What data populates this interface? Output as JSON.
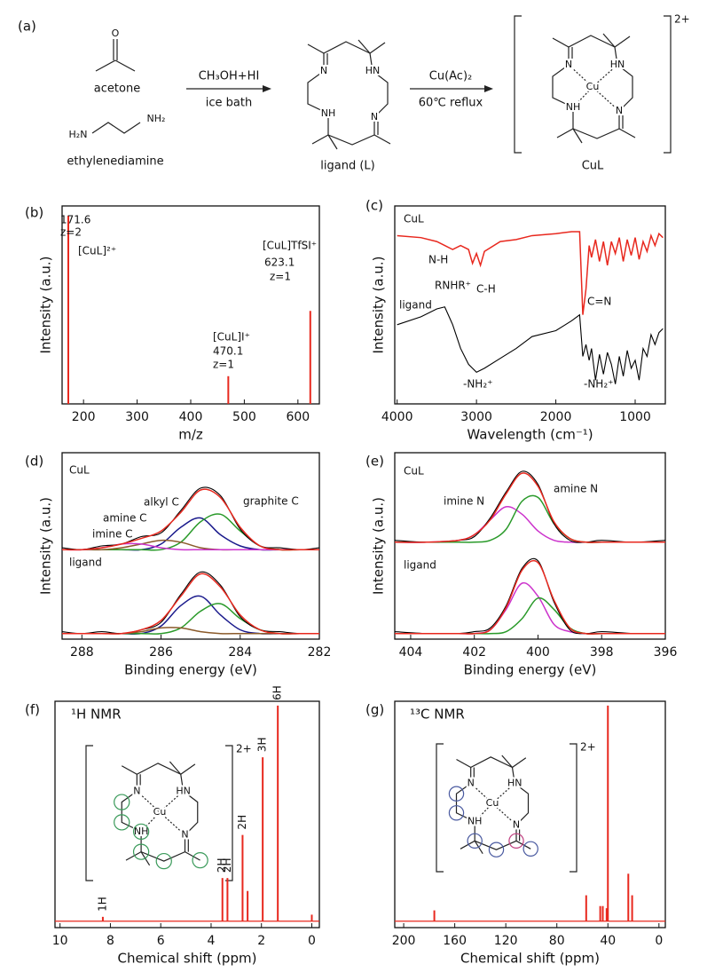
{
  "scheme": {
    "label": "(a)",
    "acetone_atoms": [
      "O"
    ],
    "acetone": "acetone",
    "ethylenediamine_atoms": [
      "H₂N",
      "NH₂"
    ],
    "ethylenediamine": "ethylenediamine",
    "step1": [
      "CH₃OH+HI",
      "ice bath"
    ],
    "ligand_atoms": [
      "N",
      "HN",
      "NH",
      "N"
    ],
    "ligand": "ligand (L)",
    "step2": [
      "Cu(Ac)₂",
      "60℃ reflux"
    ],
    "complex_atoms": [
      "N",
      "HN",
      "NH",
      "N",
      "Cu"
    ],
    "complex_charge": "2+",
    "complex": "CuL"
  },
  "chart_data": [
    {
      "type": "stick",
      "panel": "(b)",
      "xlabel": "m/z",
      "ylabel": "Intensity (a.u.)",
      "color": "#e8281e",
      "x": [
        171.6,
        470.1,
        623.1
      ],
      "values": [
        0.95,
        0.14,
        0.47
      ],
      "annotations": [
        "z=2",
        "[CuL]²⁺",
        "[CuL]I⁺",
        "z=1",
        "[CuL]TfSI⁺",
        "z=1"
      ],
      "xlim": [
        160,
        640
      ],
      "ylim": [
        0,
        1
      ],
      "xticks": [
        200,
        300,
        400,
        500,
        600
      ]
    },
    {
      "type": "line",
      "panel": "(c)",
      "xlabel": "Wavelength (cm⁻¹)",
      "ylabel": "Intensity (a.u.)",
      "x": [
        4000,
        3700,
        3500,
        3400,
        3300,
        3200,
        3100,
        3050,
        3000,
        2950,
        2900,
        2700,
        2500,
        2300,
        2000,
        1800,
        1700,
        1660,
        1620,
        1580,
        1550,
        1500,
        1450,
        1400,
        1350,
        1300,
        1250,
        1200,
        1150,
        1100,
        1050,
        1000,
        950,
        900,
        850,
        800,
        750,
        700,
        650
      ],
      "series": [
        {
          "name": "CuL",
          "color": "#e8281e",
          "values": [
            0.85,
            0.84,
            0.82,
            0.8,
            0.78,
            0.8,
            0.78,
            0.71,
            0.76,
            0.7,
            0.77,
            0.82,
            0.83,
            0.85,
            0.86,
            0.87,
            0.87,
            0.45,
            0.58,
            0.8,
            0.74,
            0.83,
            0.72,
            0.82,
            0.7,
            0.82,
            0.76,
            0.84,
            0.72,
            0.83,
            0.75,
            0.84,
            0.73,
            0.82,
            0.77,
            0.85,
            0.8,
            0.86,
            0.84
          ]
        },
        {
          "name": "ligand",
          "color": "#000000",
          "values": [
            0.4,
            0.44,
            0.48,
            0.49,
            0.4,
            0.28,
            0.2,
            0.18,
            0.16,
            0.17,
            0.18,
            0.23,
            0.28,
            0.34,
            0.37,
            0.42,
            0.45,
            0.24,
            0.3,
            0.22,
            0.28,
            0.12,
            0.25,
            0.15,
            0.26,
            0.2,
            0.1,
            0.24,
            0.14,
            0.27,
            0.18,
            0.22,
            0.12,
            0.28,
            0.24,
            0.35,
            0.3,
            0.36,
            0.38
          ]
        }
      ],
      "annotations": [
        "N-H",
        "RNHR⁺",
        "C-H",
        "C=N",
        "-NH₂⁺",
        "-NH₂⁺"
      ],
      "xlim": [
        4030,
        620
      ],
      "ylim": [
        0,
        1
      ],
      "xticks": [
        4000,
        3000,
        2000,
        1000
      ]
    },
    {
      "type": "line",
      "panel": "(d)",
      "xlabel": "Binding energy (eV)",
      "ylabel": "Intensity (a.u.)",
      "x": [
        288.5,
        288,
        287.5,
        287,
        286.5,
        286,
        285.5,
        285,
        284.5,
        284,
        283.5,
        283,
        282.5,
        282
      ],
      "series": [
        {
          "color": "#1a1a8c",
          "values": [
            0.48,
            0.48,
            0.48,
            0.48,
            0.48,
            0.51,
            0.6,
            0.65,
            0.56,
            0.5,
            0.48,
            0.48,
            0.48,
            0.48
          ]
        },
        {
          "color": "#2a9a2a",
          "values": [
            0.48,
            0.48,
            0.48,
            0.48,
            0.48,
            0.48,
            0.52,
            0.63,
            0.67,
            0.58,
            0.5,
            0.48,
            0.48,
            0.48
          ]
        },
        {
          "color": "#8a5a2a",
          "values": [
            0.48,
            0.48,
            0.48,
            0.49,
            0.51,
            0.53,
            0.52,
            0.49,
            0.48,
            0.48,
            0.48,
            0.48,
            0.48,
            0.48
          ]
        },
        {
          "color": "#cc33cc",
          "values": [
            0.48,
            0.48,
            0.49,
            0.51,
            0.51,
            0.49,
            0.48,
            0.48,
            0.48,
            0.48,
            0.48,
            0.48,
            0.48,
            0.48
          ]
        },
        {
          "color": "#000000",
          "values": [
            0.49,
            0.48,
            0.5,
            0.51,
            0.55,
            0.57,
            0.69,
            0.81,
            0.77,
            0.59,
            0.5,
            0.49,
            0.48,
            0.49
          ]
        },
        {
          "color": "#e8281e",
          "values": [
            0.48,
            0.48,
            0.49,
            0.51,
            0.54,
            0.58,
            0.68,
            0.8,
            0.76,
            0.6,
            0.5,
            0.48,
            0.48,
            0.48
          ]
        },
        {
          "color": "#1a1a8c",
          "values": [
            0.03,
            0.03,
            0.03,
            0.03,
            0.03,
            0.07,
            0.18,
            0.23,
            0.13,
            0.05,
            0.03,
            0.03,
            0.03,
            0.03
          ]
        },
        {
          "color": "#2a9a2a",
          "values": [
            0.03,
            0.03,
            0.03,
            0.03,
            0.03,
            0.03,
            0.06,
            0.15,
            0.19,
            0.11,
            0.05,
            0.03,
            0.03,
            0.03
          ]
        },
        {
          "color": "#8a5a2a",
          "values": [
            0.03,
            0.03,
            0.03,
            0.03,
            0.04,
            0.06,
            0.06,
            0.04,
            0.03,
            0.03,
            0.03,
            0.03,
            0.03,
            0.03
          ]
        },
        {
          "color": "#000000",
          "values": [
            0.04,
            0.03,
            0.04,
            0.03,
            0.05,
            0.09,
            0.24,
            0.36,
            0.29,
            0.12,
            0.05,
            0.04,
            0.03,
            0.03
          ]
        },
        {
          "color": "#e8281e",
          "values": [
            0.03,
            0.03,
            0.03,
            0.03,
            0.05,
            0.1,
            0.23,
            0.35,
            0.28,
            0.13,
            0.05,
            0.03,
            0.03,
            0.03
          ]
        }
      ],
      "annotations": [
        "CuL",
        "alkyl C",
        "amine C",
        "imine C",
        "graphite C",
        "ligand"
      ],
      "xlim": [
        288.5,
        282
      ],
      "ylim": [
        0,
        1
      ],
      "xticks": [
        288,
        286,
        284,
        282
      ]
    },
    {
      "type": "line",
      "panel": "(e)",
      "xlabel": "Binding energy (eV)",
      "ylabel": "Intensity (a.u.)",
      "x": [
        404.5,
        403.5,
        402.5,
        402,
        401.5,
        401,
        400.5,
        400,
        399.5,
        399,
        398.5,
        398,
        397,
        396
      ],
      "series": [
        {
          "color": "#cc33cc",
          "values": [
            0.52,
            0.52,
            0.53,
            0.56,
            0.64,
            0.71,
            0.67,
            0.58,
            0.53,
            0.52,
            0.52,
            0.52,
            0.52,
            0.52
          ]
        },
        {
          "color": "#2a9a2a",
          "values": [
            0.52,
            0.52,
            0.52,
            0.52,
            0.53,
            0.59,
            0.74,
            0.76,
            0.62,
            0.54,
            0.52,
            0.52,
            0.52,
            0.52
          ]
        },
        {
          "color": "#000000",
          "values": [
            0.53,
            0.52,
            0.53,
            0.55,
            0.65,
            0.79,
            0.9,
            0.83,
            0.62,
            0.53,
            0.52,
            0.53,
            0.52,
            0.53
          ]
        },
        {
          "color": "#e8281e",
          "values": [
            0.52,
            0.52,
            0.53,
            0.56,
            0.64,
            0.78,
            0.89,
            0.82,
            0.63,
            0.54,
            0.52,
            0.52,
            0.52,
            0.52
          ]
        },
        {
          "color": "#cc33cc",
          "values": [
            0.03,
            0.03,
            0.03,
            0.03,
            0.05,
            0.16,
            0.3,
            0.23,
            0.08,
            0.04,
            0.03,
            0.03,
            0.03,
            0.03
          ]
        },
        {
          "color": "#2a9a2a",
          "values": [
            0.03,
            0.03,
            0.03,
            0.03,
            0.03,
            0.04,
            0.11,
            0.22,
            0.16,
            0.06,
            0.03,
            0.03,
            0.03,
            0.03
          ]
        },
        {
          "color": "#000000",
          "values": [
            0.04,
            0.03,
            0.03,
            0.04,
            0.06,
            0.18,
            0.38,
            0.42,
            0.2,
            0.05,
            0.03,
            0.04,
            0.03,
            0.03
          ]
        },
        {
          "color": "#e8281e",
          "values": [
            0.03,
            0.03,
            0.03,
            0.03,
            0.05,
            0.17,
            0.37,
            0.41,
            0.21,
            0.06,
            0.03,
            0.03,
            0.03,
            0.03
          ]
        }
      ],
      "annotations": [
        "CuL",
        "imine N",
        "amine N",
        "ligand"
      ],
      "xlim": [
        404.5,
        396
      ],
      "ylim": [
        0,
        1
      ],
      "xticks": [
        404,
        402,
        400,
        398,
        396
      ]
    },
    {
      "type": "stick",
      "panel": "(f)",
      "title": "¹H NMR",
      "xlabel": "Chemical shift (ppm)",
      "color": "#e8281e",
      "x": [
        8.3,
        3.55,
        3.35,
        2.75,
        2.55,
        1.95,
        1.35,
        0
      ],
      "values": [
        0.02,
        0.2,
        0.2,
        0.4,
        0.14,
        0.76,
        1.0,
        0.03
      ],
      "peak_labels": [
        "1H",
        "2H",
        "2H",
        "2H",
        null,
        "3H",
        "6H",
        null
      ],
      "inset_atoms": [
        "N",
        "HN",
        "NH",
        "N",
        "Cu"
      ],
      "inset_charge": "2+",
      "xlim": [
        10.2,
        -0.3
      ],
      "ylim": [
        -0.03,
        1.02
      ],
      "xticks": [
        10,
        8,
        6,
        4,
        2,
        0
      ]
    },
    {
      "type": "stick",
      "panel": "(g)",
      "title": "¹³C NMR",
      "xlabel": "Chemical shift (ppm)",
      "color": "#e8281e",
      "x": [
        176,
        57,
        46,
        44,
        41,
        40,
        24,
        21
      ],
      "values": [
        0.05,
        0.12,
        0.07,
        0.07,
        0.06,
        1.0,
        0.22,
        0.12
      ],
      "inset_atoms": [
        "N",
        "HN",
        "NH",
        "N",
        "Cu"
      ],
      "inset_charge": "2+",
      "xlim": [
        207,
        -5
      ],
      "ylim": [
        -0.03,
        1.02
      ],
      "xticks": [
        200,
        160,
        120,
        80,
        40,
        0
      ]
    }
  ]
}
